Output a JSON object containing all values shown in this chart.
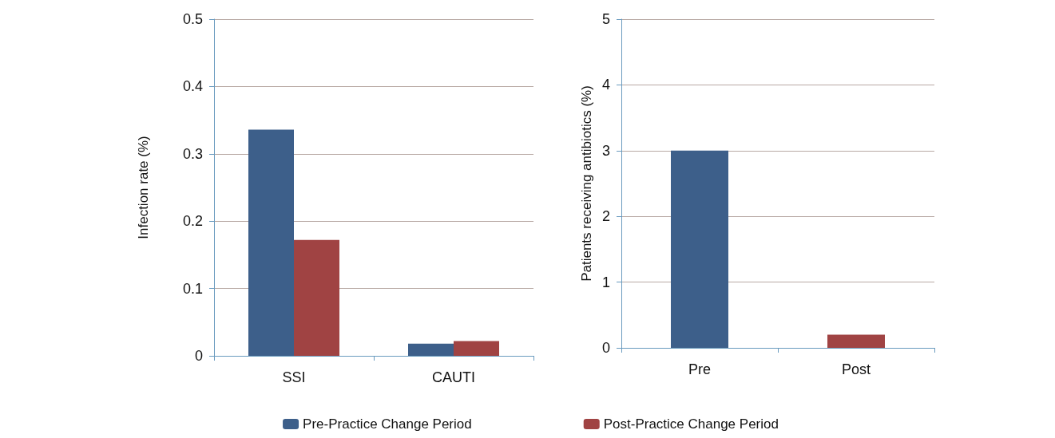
{
  "chart_data": [
    {
      "type": "bar",
      "categories": [
        "SSI",
        "CAUTI"
      ],
      "ylabel": "Infection rate (%)",
      "ylim": [
        0,
        0.5
      ],
      "yticks": [
        0,
        0.1,
        0.2,
        0.3,
        0.4,
        0.5
      ],
      "grid": "y",
      "legend": "bottom",
      "series": [
        {
          "name": "Pre-Practice Change Period",
          "color": "#3d5f8a",
          "values": [
            0.336,
            0.018
          ]
        },
        {
          "name": "Post-Practice Change Period",
          "color": "#a04343",
          "values": [
            0.172,
            0.022
          ]
        }
      ]
    },
    {
      "type": "bar",
      "categories": [
        "Pre",
        "Post"
      ],
      "ylabel": "Patients receiving antibiotics (%)",
      "ylim": [
        0,
        5
      ],
      "yticks": [
        0,
        1,
        2,
        3,
        4,
        5
      ],
      "grid": "y",
      "values": [
        3,
        0.2
      ],
      "colors": [
        "#3d5f8a",
        "#a04343"
      ]
    }
  ]
}
